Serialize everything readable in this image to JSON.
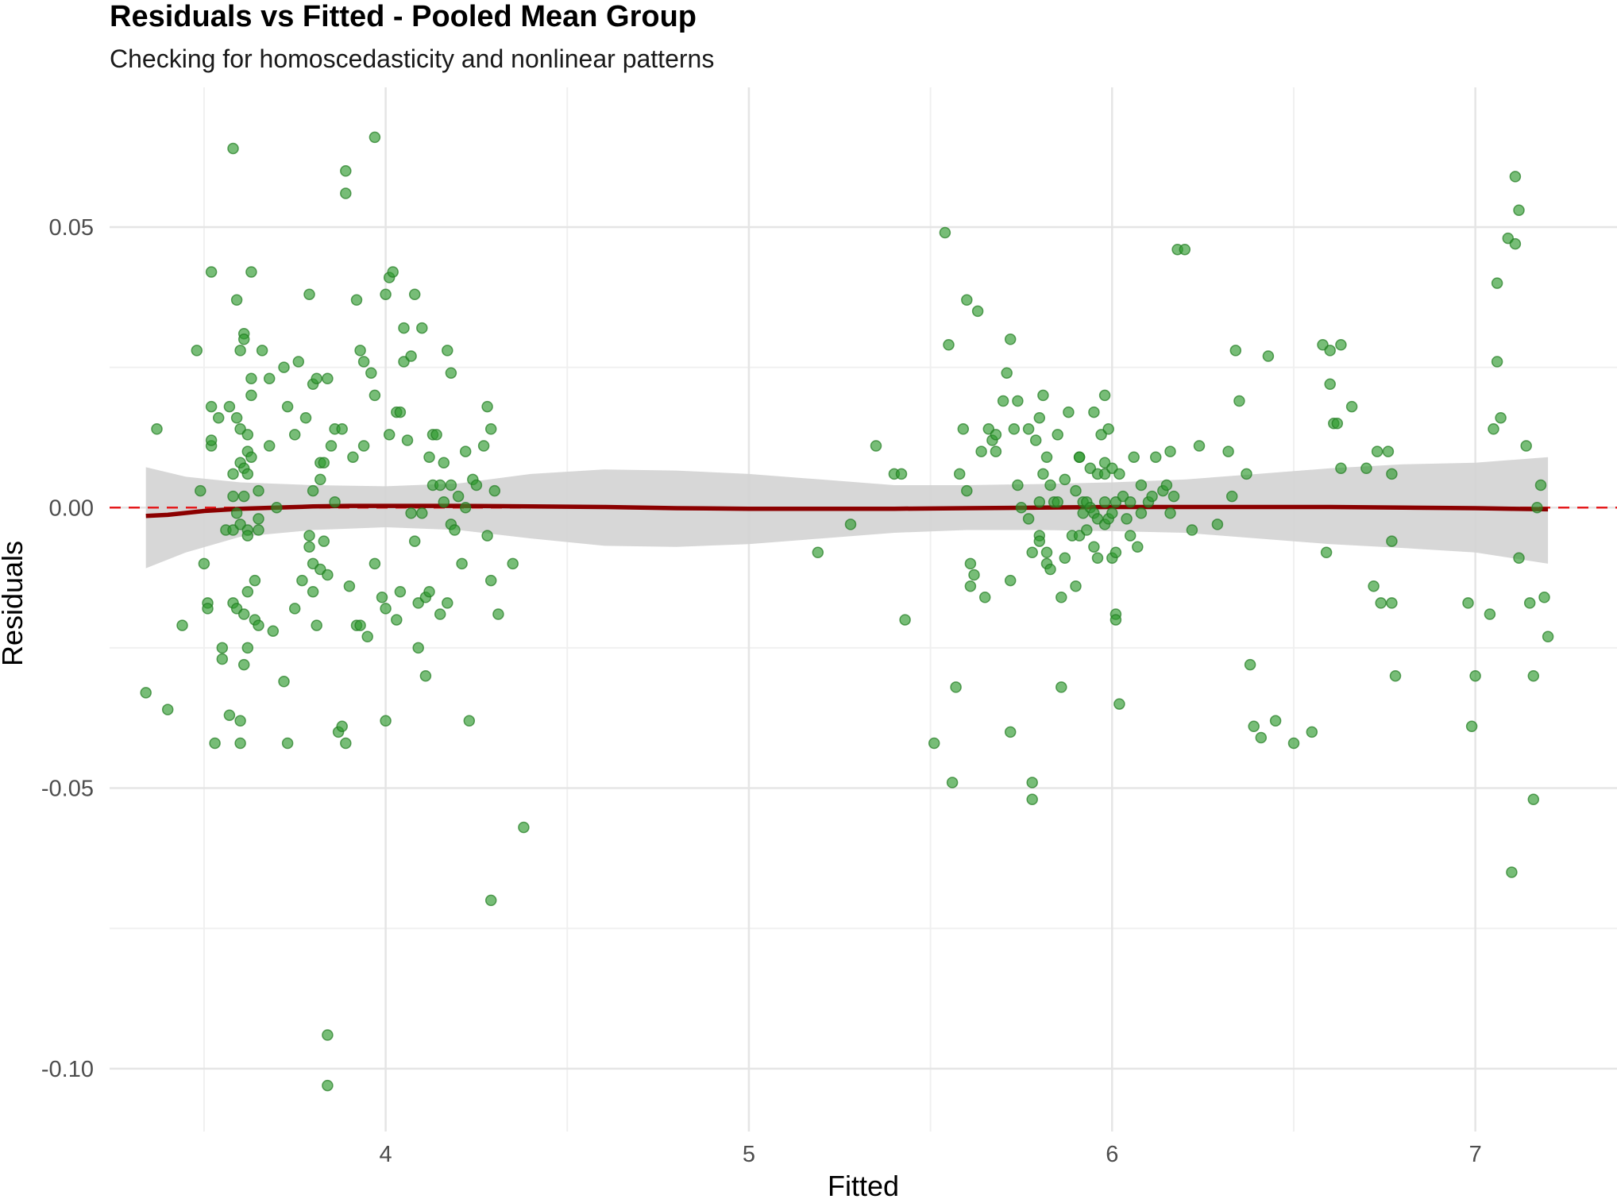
{
  "chart_data": {
    "type": "scatter",
    "title": "Residuals vs Fitted - Pooled Mean Group",
    "subtitle": "Checking for homoscedasticity and nonlinear patterns",
    "xlabel": "Fitted",
    "ylabel": "Residuals",
    "xlim": [
      3.24,
      7.39
    ],
    "ylim": [
      -0.1112,
      0.0749
    ],
    "x_ticks": [
      4,
      5,
      6,
      7
    ],
    "x_tick_labels": [
      "4",
      "5",
      "6",
      "7"
    ],
    "y_ticks": [
      -0.1,
      -0.05,
      0.0,
      0.05
    ],
    "y_tick_labels": [
      "-0.10",
      "-0.05",
      "0.00",
      "0.05"
    ],
    "grid": true,
    "reference_line": {
      "y": 0,
      "style": "dashed",
      "color": "#e41a1c"
    },
    "point_color": "#2e9a2e",
    "smooth_color": "#8b0000",
    "band_color": "#d3d3d3",
    "points": [
      [
        3.34,
        -0.033
      ],
      [
        3.37,
        0.014
      ],
      [
        3.4,
        -0.036
      ],
      [
        3.44,
        -0.021
      ],
      [
        3.48,
        0.028
      ],
      [
        3.49,
        0.003
      ],
      [
        3.5,
        -0.01
      ],
      [
        3.51,
        -0.017
      ],
      [
        3.51,
        -0.018
      ],
      [
        3.52,
        0.018
      ],
      [
        3.52,
        0.011
      ],
      [
        3.52,
        0.012
      ],
      [
        3.52,
        0.042
      ],
      [
        3.53,
        -0.042
      ],
      [
        3.54,
        0.016
      ],
      [
        3.55,
        -0.025
      ],
      [
        3.55,
        -0.027
      ],
      [
        3.56,
        -0.004
      ],
      [
        3.57,
        0.018
      ],
      [
        3.57,
        -0.037
      ],
      [
        3.58,
        0.064
      ],
      [
        3.58,
        0.006
      ],
      [
        3.58,
        0.002
      ],
      [
        3.58,
        -0.004
      ],
      [
        3.58,
        -0.017
      ],
      [
        3.59,
        0.016
      ],
      [
        3.59,
        0.037
      ],
      [
        3.59,
        -0.001
      ],
      [
        3.59,
        -0.018
      ],
      [
        3.6,
        0.028
      ],
      [
        3.6,
        0.014
      ],
      [
        3.6,
        0.008
      ],
      [
        3.6,
        -0.003
      ],
      [
        3.6,
        -0.042
      ],
      [
        3.6,
        -0.038
      ],
      [
        3.61,
        0.031
      ],
      [
        3.61,
        0.03
      ],
      [
        3.61,
        0.007
      ],
      [
        3.61,
        0.002
      ],
      [
        3.61,
        -0.019
      ],
      [
        3.61,
        -0.028
      ],
      [
        3.62,
        0.013
      ],
      [
        3.62,
        0.01
      ],
      [
        3.62,
        0.006
      ],
      [
        3.62,
        -0.004
      ],
      [
        3.62,
        -0.005
      ],
      [
        3.62,
        -0.015
      ],
      [
        3.62,
        -0.025
      ],
      [
        3.63,
        0.042
      ],
      [
        3.63,
        0.023
      ],
      [
        3.63,
        0.02
      ],
      [
        3.63,
        0.009
      ],
      [
        3.64,
        -0.013
      ],
      [
        3.64,
        -0.02
      ],
      [
        3.65,
        -0.021
      ],
      [
        3.65,
        -0.002
      ],
      [
        3.65,
        -0.004
      ],
      [
        3.65,
        0.003
      ],
      [
        3.66,
        0.028
      ],
      [
        3.68,
        0.023
      ],
      [
        3.68,
        0.011
      ],
      [
        3.69,
        -0.022
      ],
      [
        3.7,
        0.0
      ],
      [
        3.72,
        0.025
      ],
      [
        3.72,
        -0.031
      ],
      [
        3.73,
        0.018
      ],
      [
        3.73,
        -0.042
      ],
      [
        3.75,
        0.013
      ],
      [
        3.75,
        -0.018
      ],
      [
        3.76,
        0.026
      ],
      [
        3.77,
        -0.013
      ],
      [
        3.78,
        0.016
      ],
      [
        3.79,
        0.038
      ],
      [
        3.79,
        -0.007
      ],
      [
        3.79,
        -0.005
      ],
      [
        3.8,
        0.022
      ],
      [
        3.8,
        0.003
      ],
      [
        3.8,
        -0.01
      ],
      [
        3.8,
        -0.015
      ],
      [
        3.81,
        0.023
      ],
      [
        3.81,
        -0.021
      ],
      [
        3.82,
        0.005
      ],
      [
        3.82,
        -0.011
      ],
      [
        3.82,
        0.008
      ],
      [
        3.83,
        0.008
      ],
      [
        3.83,
        -0.006
      ],
      [
        3.84,
        0.023
      ],
      [
        3.84,
        -0.012
      ],
      [
        3.84,
        -0.103
      ],
      [
        3.84,
        -0.094
      ],
      [
        3.85,
        0.011
      ],
      [
        3.86,
        0.014
      ],
      [
        3.86,
        0.001
      ],
      [
        3.87,
        -0.04
      ],
      [
        3.88,
        -0.039
      ],
      [
        3.88,
        0.014
      ],
      [
        3.89,
        0.06
      ],
      [
        3.89,
        0.056
      ],
      [
        3.89,
        -0.042
      ],
      [
        3.9,
        -0.014
      ],
      [
        3.91,
        0.009
      ],
      [
        3.92,
        0.037
      ],
      [
        3.92,
        -0.021
      ],
      [
        3.93,
        0.028
      ],
      [
        3.93,
        -0.021
      ],
      [
        3.94,
        0.011
      ],
      [
        3.94,
        0.026
      ],
      [
        3.95,
        -0.023
      ],
      [
        3.96,
        0.024
      ],
      [
        3.97,
        0.02
      ],
      [
        3.97,
        0.066
      ],
      [
        3.97,
        -0.01
      ],
      [
        3.99,
        -0.016
      ],
      [
        4.0,
        0.038
      ],
      [
        4.0,
        -0.018
      ],
      [
        4.0,
        -0.038
      ],
      [
        4.01,
        0.041
      ],
      [
        4.01,
        0.013
      ],
      [
        4.02,
        0.042
      ],
      [
        4.03,
        0.017
      ],
      [
        4.03,
        -0.02
      ],
      [
        4.04,
        0.017
      ],
      [
        4.04,
        -0.015
      ],
      [
        4.05,
        0.032
      ],
      [
        4.05,
        0.026
      ],
      [
        4.06,
        0.012
      ],
      [
        4.07,
        0.027
      ],
      [
        4.07,
        -0.001
      ],
      [
        4.08,
        0.038
      ],
      [
        4.08,
        -0.006
      ],
      [
        4.09,
        -0.025
      ],
      [
        4.09,
        -0.017
      ],
      [
        4.1,
        0.032
      ],
      [
        4.1,
        -0.001
      ],
      [
        4.11,
        -0.03
      ],
      [
        4.11,
        -0.016
      ],
      [
        4.12,
        -0.015
      ],
      [
        4.12,
        0.009
      ],
      [
        4.13,
        0.013
      ],
      [
        4.13,
        0.004
      ],
      [
        4.14,
        0.013
      ],
      [
        4.15,
        0.004
      ],
      [
        4.15,
        -0.019
      ],
      [
        4.16,
        0.008
      ],
      [
        4.16,
        0.001
      ],
      [
        4.17,
        0.028
      ],
      [
        4.17,
        -0.017
      ],
      [
        4.18,
        0.024
      ],
      [
        4.18,
        0.004
      ],
      [
        4.18,
        -0.003
      ],
      [
        4.19,
        -0.004
      ],
      [
        4.2,
        0.002
      ],
      [
        4.21,
        -0.01
      ],
      [
        4.22,
        0.01
      ],
      [
        4.22,
        0.0
      ],
      [
        4.23,
        -0.038
      ],
      [
        4.24,
        0.005
      ],
      [
        4.25,
        0.004
      ],
      [
        4.27,
        0.011
      ],
      [
        4.28,
        0.018
      ],
      [
        4.28,
        -0.005
      ],
      [
        4.29,
        0.014
      ],
      [
        4.29,
        -0.013
      ],
      [
        4.29,
        -0.07
      ],
      [
        4.3,
        0.003
      ],
      [
        4.31,
        -0.019
      ],
      [
        4.35,
        -0.01
      ],
      [
        4.38,
        -0.057
      ],
      [
        5.19,
        -0.008
      ],
      [
        5.28,
        -0.003
      ],
      [
        5.35,
        0.011
      ],
      [
        5.4,
        0.006
      ],
      [
        5.42,
        0.006
      ],
      [
        5.43,
        -0.02
      ],
      [
        5.51,
        -0.042
      ],
      [
        5.54,
        0.049
      ],
      [
        5.55,
        0.029
      ],
      [
        5.56,
        -0.049
      ],
      [
        5.57,
        -0.032
      ],
      [
        5.58,
        0.006
      ],
      [
        5.59,
        0.014
      ],
      [
        5.6,
        0.037
      ],
      [
        5.6,
        0.003
      ],
      [
        5.61,
        -0.01
      ],
      [
        5.61,
        -0.014
      ],
      [
        5.62,
        -0.012
      ],
      [
        5.63,
        0.035
      ],
      [
        5.64,
        0.01
      ],
      [
        5.65,
        -0.016
      ],
      [
        5.66,
        0.014
      ],
      [
        5.67,
        0.012
      ],
      [
        5.68,
        0.013
      ],
      [
        5.68,
        0.01
      ],
      [
        5.7,
        0.019
      ],
      [
        5.71,
        0.024
      ],
      [
        5.72,
        0.03
      ],
      [
        5.72,
        -0.04
      ],
      [
        5.72,
        -0.013
      ],
      [
        5.73,
        0.014
      ],
      [
        5.74,
        0.019
      ],
      [
        5.74,
        0.004
      ],
      [
        5.75,
        0.0
      ],
      [
        5.77,
        0.014
      ],
      [
        5.77,
        -0.002
      ],
      [
        5.78,
        -0.008
      ],
      [
        5.78,
        -0.052
      ],
      [
        5.78,
        -0.049
      ],
      [
        5.79,
        0.012
      ],
      [
        5.8,
        0.016
      ],
      [
        5.8,
        0.001
      ],
      [
        5.8,
        -0.005
      ],
      [
        5.8,
        -0.006
      ],
      [
        5.81,
        0.02
      ],
      [
        5.81,
        0.006
      ],
      [
        5.82,
        0.009
      ],
      [
        5.82,
        -0.01
      ],
      [
        5.82,
        -0.008
      ],
      [
        5.83,
        0.004
      ],
      [
        5.83,
        -0.011
      ],
      [
        5.84,
        0.001
      ],
      [
        5.85,
        0.001
      ],
      [
        5.85,
        0.013
      ],
      [
        5.86,
        -0.016
      ],
      [
        5.86,
        -0.032
      ],
      [
        5.87,
        -0.009
      ],
      [
        5.87,
        0.005
      ],
      [
        5.88,
        0.017
      ],
      [
        5.89,
        -0.005
      ],
      [
        5.9,
        0.003
      ],
      [
        5.9,
        -0.014
      ],
      [
        5.91,
        0.009
      ],
      [
        5.91,
        0.009
      ],
      [
        5.91,
        -0.005
      ],
      [
        5.92,
        -0.001
      ],
      [
        5.92,
        0.001
      ],
      [
        5.93,
        0.001
      ],
      [
        5.93,
        -0.004
      ],
      [
        5.94,
        0.007
      ],
      [
        5.94,
        0.0
      ],
      [
        5.95,
        -0.001
      ],
      [
        5.95,
        -0.007
      ],
      [
        5.95,
        0.017
      ],
      [
        5.96,
        0.006
      ],
      [
        5.96,
        -0.009
      ],
      [
        5.96,
        -0.002
      ],
      [
        5.97,
        0.013
      ],
      [
        5.98,
        0.001
      ],
      [
        5.98,
        0.006
      ],
      [
        5.98,
        0.008
      ],
      [
        5.98,
        0.02
      ],
      [
        5.98,
        -0.003
      ],
      [
        5.99,
        -0.002
      ],
      [
        5.99,
        0.014
      ],
      [
        6.0,
        0.007
      ],
      [
        6.0,
        -0.001
      ],
      [
        6.0,
        -0.009
      ],
      [
        6.01,
        0.001
      ],
      [
        6.01,
        -0.008
      ],
      [
        6.01,
        -0.019
      ],
      [
        6.01,
        -0.02
      ],
      [
        6.02,
        0.006
      ],
      [
        6.02,
        -0.035
      ],
      [
        6.03,
        0.002
      ],
      [
        6.04,
        -0.002
      ],
      [
        6.05,
        0.001
      ],
      [
        6.05,
        -0.005
      ],
      [
        6.06,
        0.009
      ],
      [
        6.07,
        -0.007
      ],
      [
        6.08,
        0.004
      ],
      [
        6.08,
        -0.001
      ],
      [
        6.1,
        0.001
      ],
      [
        6.11,
        0.002
      ],
      [
        6.12,
        0.009
      ],
      [
        6.14,
        0.003
      ],
      [
        6.15,
        0.004
      ],
      [
        6.16,
        0.01
      ],
      [
        6.16,
        -0.001
      ],
      [
        6.17,
        0.002
      ],
      [
        6.18,
        0.046
      ],
      [
        6.2,
        0.046
      ],
      [
        6.22,
        -0.004
      ],
      [
        6.24,
        0.011
      ],
      [
        6.29,
        -0.003
      ],
      [
        6.32,
        0.01
      ],
      [
        6.33,
        0.002
      ],
      [
        6.34,
        0.028
      ],
      [
        6.35,
        0.019
      ],
      [
        6.37,
        0.006
      ],
      [
        6.38,
        -0.028
      ],
      [
        6.39,
        -0.039
      ],
      [
        6.41,
        -0.041
      ],
      [
        6.43,
        0.027
      ],
      [
        6.45,
        -0.038
      ],
      [
        6.5,
        -0.042
      ],
      [
        6.55,
        -0.04
      ],
      [
        6.58,
        0.029
      ],
      [
        6.59,
        -0.008
      ],
      [
        6.6,
        0.028
      ],
      [
        6.6,
        0.022
      ],
      [
        6.61,
        0.015
      ],
      [
        6.62,
        0.015
      ],
      [
        6.63,
        0.029
      ],
      [
        6.63,
        0.007
      ],
      [
        6.66,
        0.018
      ],
      [
        6.7,
        0.007
      ],
      [
        6.72,
        -0.014
      ],
      [
        6.73,
        0.01
      ],
      [
        6.74,
        -0.017
      ],
      [
        6.76,
        0.01
      ],
      [
        6.77,
        -0.017
      ],
      [
        6.77,
        0.006
      ],
      [
        6.77,
        -0.006
      ],
      [
        6.78,
        -0.03
      ],
      [
        6.98,
        -0.017
      ],
      [
        6.99,
        -0.039
      ],
      [
        7.0,
        -0.03
      ],
      [
        7.04,
        -0.019
      ],
      [
        7.05,
        0.014
      ],
      [
        7.06,
        0.026
      ],
      [
        7.06,
        0.04
      ],
      [
        7.07,
        0.016
      ],
      [
        7.09,
        0.048
      ],
      [
        7.1,
        -0.065
      ],
      [
        7.11,
        0.059
      ],
      [
        7.11,
        0.047
      ],
      [
        7.12,
        0.053
      ],
      [
        7.12,
        -0.009
      ],
      [
        7.14,
        0.011
      ],
      [
        7.15,
        -0.017
      ],
      [
        7.16,
        -0.052
      ],
      [
        7.16,
        -0.03
      ],
      [
        7.17,
        0.0
      ],
      [
        7.18,
        0.004
      ],
      [
        7.19,
        -0.016
      ],
      [
        7.2,
        -0.023
      ]
    ],
    "smooth": [
      [
        3.34,
        -0.0015
      ],
      [
        3.4,
        -0.0013
      ],
      [
        3.5,
        -0.0006
      ],
      [
        3.6,
        -0.0002
      ],
      [
        3.7,
        0.0
      ],
      [
        3.8,
        0.0002
      ],
      [
        3.9,
        0.0003
      ],
      [
        4.0,
        0.0003
      ],
      [
        4.1,
        0.0003
      ],
      [
        4.2,
        0.0003
      ],
      [
        4.4,
        0.0002
      ],
      [
        4.6,
        0.0001
      ],
      [
        4.8,
        -0.0001
      ],
      [
        5.0,
        -0.0002
      ],
      [
        5.2,
        -0.0002
      ],
      [
        5.4,
        -0.0002
      ],
      [
        5.6,
        -0.0001
      ],
      [
        5.8,
        0.0
      ],
      [
        6.0,
        0.0001
      ],
      [
        6.2,
        0.0001
      ],
      [
        6.4,
        0.0001
      ],
      [
        6.6,
        0.0001
      ],
      [
        6.8,
        0.0
      ],
      [
        7.0,
        -0.0001
      ],
      [
        7.1,
        -0.0002
      ],
      [
        7.2,
        -0.0003
      ]
    ],
    "band_upper": [
      [
        3.34,
        0.0072
      ],
      [
        3.45,
        0.0055
      ],
      [
        3.6,
        0.0045
      ],
      [
        3.8,
        0.004
      ],
      [
        4.0,
        0.0038
      ],
      [
        4.2,
        0.0043
      ],
      [
        4.4,
        0.006
      ],
      [
        4.6,
        0.0068
      ],
      [
        4.8,
        0.0066
      ],
      [
        5.0,
        0.006
      ],
      [
        5.2,
        0.005
      ],
      [
        5.4,
        0.004
      ],
      [
        5.6,
        0.004
      ],
      [
        5.8,
        0.0042
      ],
      [
        6.0,
        0.0045
      ],
      [
        6.2,
        0.005
      ],
      [
        6.4,
        0.006
      ],
      [
        6.6,
        0.007
      ],
      [
        6.8,
        0.0077
      ],
      [
        7.0,
        0.008
      ],
      [
        7.2,
        0.009
      ]
    ],
    "band_lower": [
      [
        3.34,
        -0.0108
      ],
      [
        3.45,
        -0.008
      ],
      [
        3.6,
        -0.0052
      ],
      [
        3.8,
        -0.004
      ],
      [
        4.0,
        -0.0035
      ],
      [
        4.2,
        -0.004
      ],
      [
        4.4,
        -0.0055
      ],
      [
        4.6,
        -0.0068
      ],
      [
        4.8,
        -0.007
      ],
      [
        5.0,
        -0.0065
      ],
      [
        5.2,
        -0.0055
      ],
      [
        5.4,
        -0.0045
      ],
      [
        5.6,
        -0.004
      ],
      [
        5.8,
        -0.004
      ],
      [
        6.0,
        -0.0042
      ],
      [
        6.2,
        -0.0045
      ],
      [
        6.4,
        -0.0055
      ],
      [
        6.6,
        -0.0065
      ],
      [
        6.8,
        -0.0072
      ],
      [
        7.0,
        -0.008
      ],
      [
        7.2,
        -0.01
      ]
    ]
  }
}
